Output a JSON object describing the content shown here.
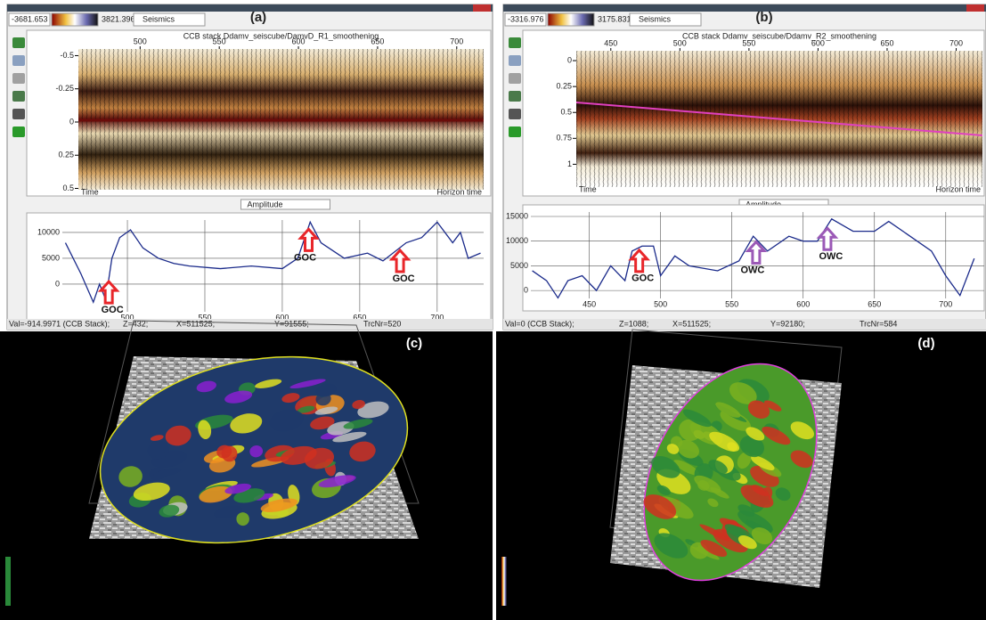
{
  "panels": [
    {
      "label": "(a)",
      "range_min": "-3681.653",
      "range_max": "3821.396",
      "attribute": "Seismics",
      "title": "CCB stack Ddamv_seiscube/DamvD_R1_smoothening",
      "xlim": [
        461,
        717
      ],
      "ylim": [
        -0.55,
        0.51
      ],
      "xticks": [
        500,
        550,
        600,
        650,
        700
      ],
      "yticks": [
        -0.5,
        -0.25,
        0,
        0.25,
        0.5
      ],
      "left_label": "Time",
      "right_label": "Horizon time",
      "selector": "Amplitude",
      "amplitude": {
        "xlim": [
          458,
          730
        ],
        "ylim": [
          -5350,
          12400
        ],
        "xticks": [
          500,
          550,
          600,
          650,
          700
        ],
        "yticks": [
          0,
          5000,
          10000
        ],
        "x": [
          460,
          470,
          478,
          482,
          486,
          490,
          495,
          502,
          510,
          520,
          530,
          540,
          560,
          580,
          600,
          610,
          618,
          625,
          640,
          655,
          665,
          680,
          690,
          700,
          710,
          715,
          720,
          728
        ],
        "values": [
          8000,
          2000,
          -3500,
          0,
          -3000,
          5000,
          9000,
          10500,
          7000,
          5000,
          4000,
          3500,
          3000,
          3500,
          3000,
          5000,
          12000,
          8000,
          5000,
          6000,
          4500,
          8000,
          9000,
          12000,
          8000,
          10000,
          5000,
          6000
        ],
        "annotations": [
          {
            "label": "GOC",
            "x": 488,
            "color": "#e8262a"
          },
          {
            "label": "GOC",
            "x": 617,
            "color": "#e8262a"
          },
          {
            "label": "GOC",
            "x": 676,
            "color": "#e8262a"
          }
        ]
      },
      "status": [
        "Val=-914.9971 (CCB Stack);",
        "Z=432;",
        "X=511525;",
        "Y=91555;",
        "TrcNr=520"
      ]
    },
    {
      "label": "(b)",
      "range_min": "-3316.976",
      "range_max": "3175.831",
      "attribute": "Seismics",
      "title": "CCB stack Ddamv_seiscube/Ddamv_R2_smoothening",
      "xlim": [
        425,
        719
      ],
      "ylim": [
        -0.095,
        1.22
      ],
      "xticks": [
        450,
        500,
        550,
        600,
        650,
        700
      ],
      "yticks": [
        0,
        0.25,
        0.5,
        0.75,
        1
      ],
      "left_label": "Time",
      "right_label": "Horizon time",
      "selector": "Amplitude",
      "amplitude": {
        "xlim": [
          409,
          727
        ],
        "ylim": [
          -1600,
          15900
        ],
        "xticks": [
          450,
          500,
          550,
          600,
          650,
          700
        ],
        "yticks": [
          0,
          5000,
          10000,
          15000
        ],
        "x": [
          410,
          420,
          428,
          435,
          445,
          455,
          465,
          475,
          480,
          487,
          495,
          500,
          510,
          520,
          540,
          555,
          565,
          575,
          590,
          600,
          610,
          620,
          635,
          650,
          660,
          675,
          690,
          700,
          710,
          720
        ],
        "values": [
          4000,
          2000,
          -1500,
          2000,
          3000,
          0,
          5000,
          2000,
          8000,
          9000,
          9000,
          3000,
          7000,
          5000,
          4000,
          6000,
          11000,
          8000,
          11000,
          10000,
          10000,
          14500,
          12000,
          12000,
          14000,
          11000,
          8000,
          3000,
          -1000,
          6500
        ],
        "annotations": [
          {
            "label": "GOC",
            "x": 485,
            "color": "#e8262a"
          },
          {
            "label": "OWC",
            "x": 567,
            "color": "#9b59b6"
          },
          {
            "label": "OWC",
            "x": 617,
            "color": "#9b59b6"
          }
        ]
      },
      "status": [
        "Val=0 (CCB Stack);",
        "Z=1088;",
        "X=511525;",
        "Y=92180;",
        "TrcNr=584"
      ]
    }
  ],
  "views": [
    {
      "label": "(c)"
    },
    {
      "label": "(d)"
    }
  ]
}
